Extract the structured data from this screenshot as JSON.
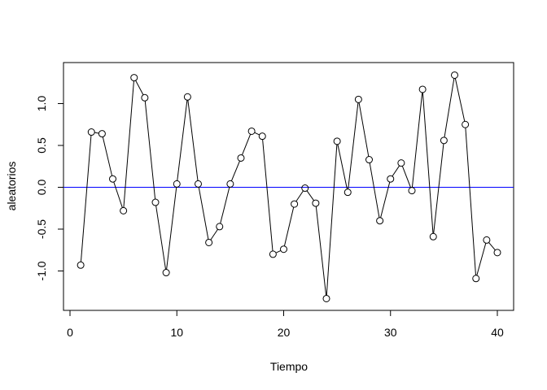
{
  "chart_data": {
    "type": "line",
    "title": "",
    "xlabel": "Tiempo",
    "ylabel": "aleatorios",
    "xlim": [
      0,
      40
    ],
    "ylim": [
      -1.35,
      1.35
    ],
    "x_ticks": [
      "0",
      "10",
      "20",
      "30",
      "40"
    ],
    "y_ticks": [
      "-1.0",
      "-0.5",
      "0.0",
      "0.5",
      "1.0"
    ],
    "grid": false,
    "legend": "none",
    "series": [
      {
        "color": "#000000",
        "marker": "open-circle",
        "x": [
          1,
          2,
          3,
          4,
          5,
          6,
          7,
          8,
          9,
          10,
          11,
          12,
          13,
          14,
          15,
          16,
          17,
          18,
          19,
          20,
          21,
          22,
          23,
          24,
          25,
          26,
          27,
          28,
          29,
          30,
          31,
          32,
          33,
          34,
          35,
          36,
          37,
          38,
          39,
          40
        ],
        "values": [
          -0.93,
          0.66,
          0.64,
          0.1,
          -0.28,
          1.31,
          1.07,
          -0.18,
          -1.02,
          0.04,
          1.08,
          0.04,
          -0.66,
          -0.47,
          0.04,
          0.35,
          0.67,
          0.61,
          -0.8,
          -0.74,
          -0.2,
          -0.01,
          -0.19,
          -1.33,
          0.55,
          -0.06,
          1.05,
          0.33,
          -0.4,
          0.1,
          0.29,
          -0.04,
          1.17,
          -0.59,
          0.56,
          1.34,
          0.75,
          -1.09,
          -0.63,
          -0.78
        ]
      }
    ],
    "reference_line": {
      "y": 0,
      "color": "#0000ff"
    }
  }
}
